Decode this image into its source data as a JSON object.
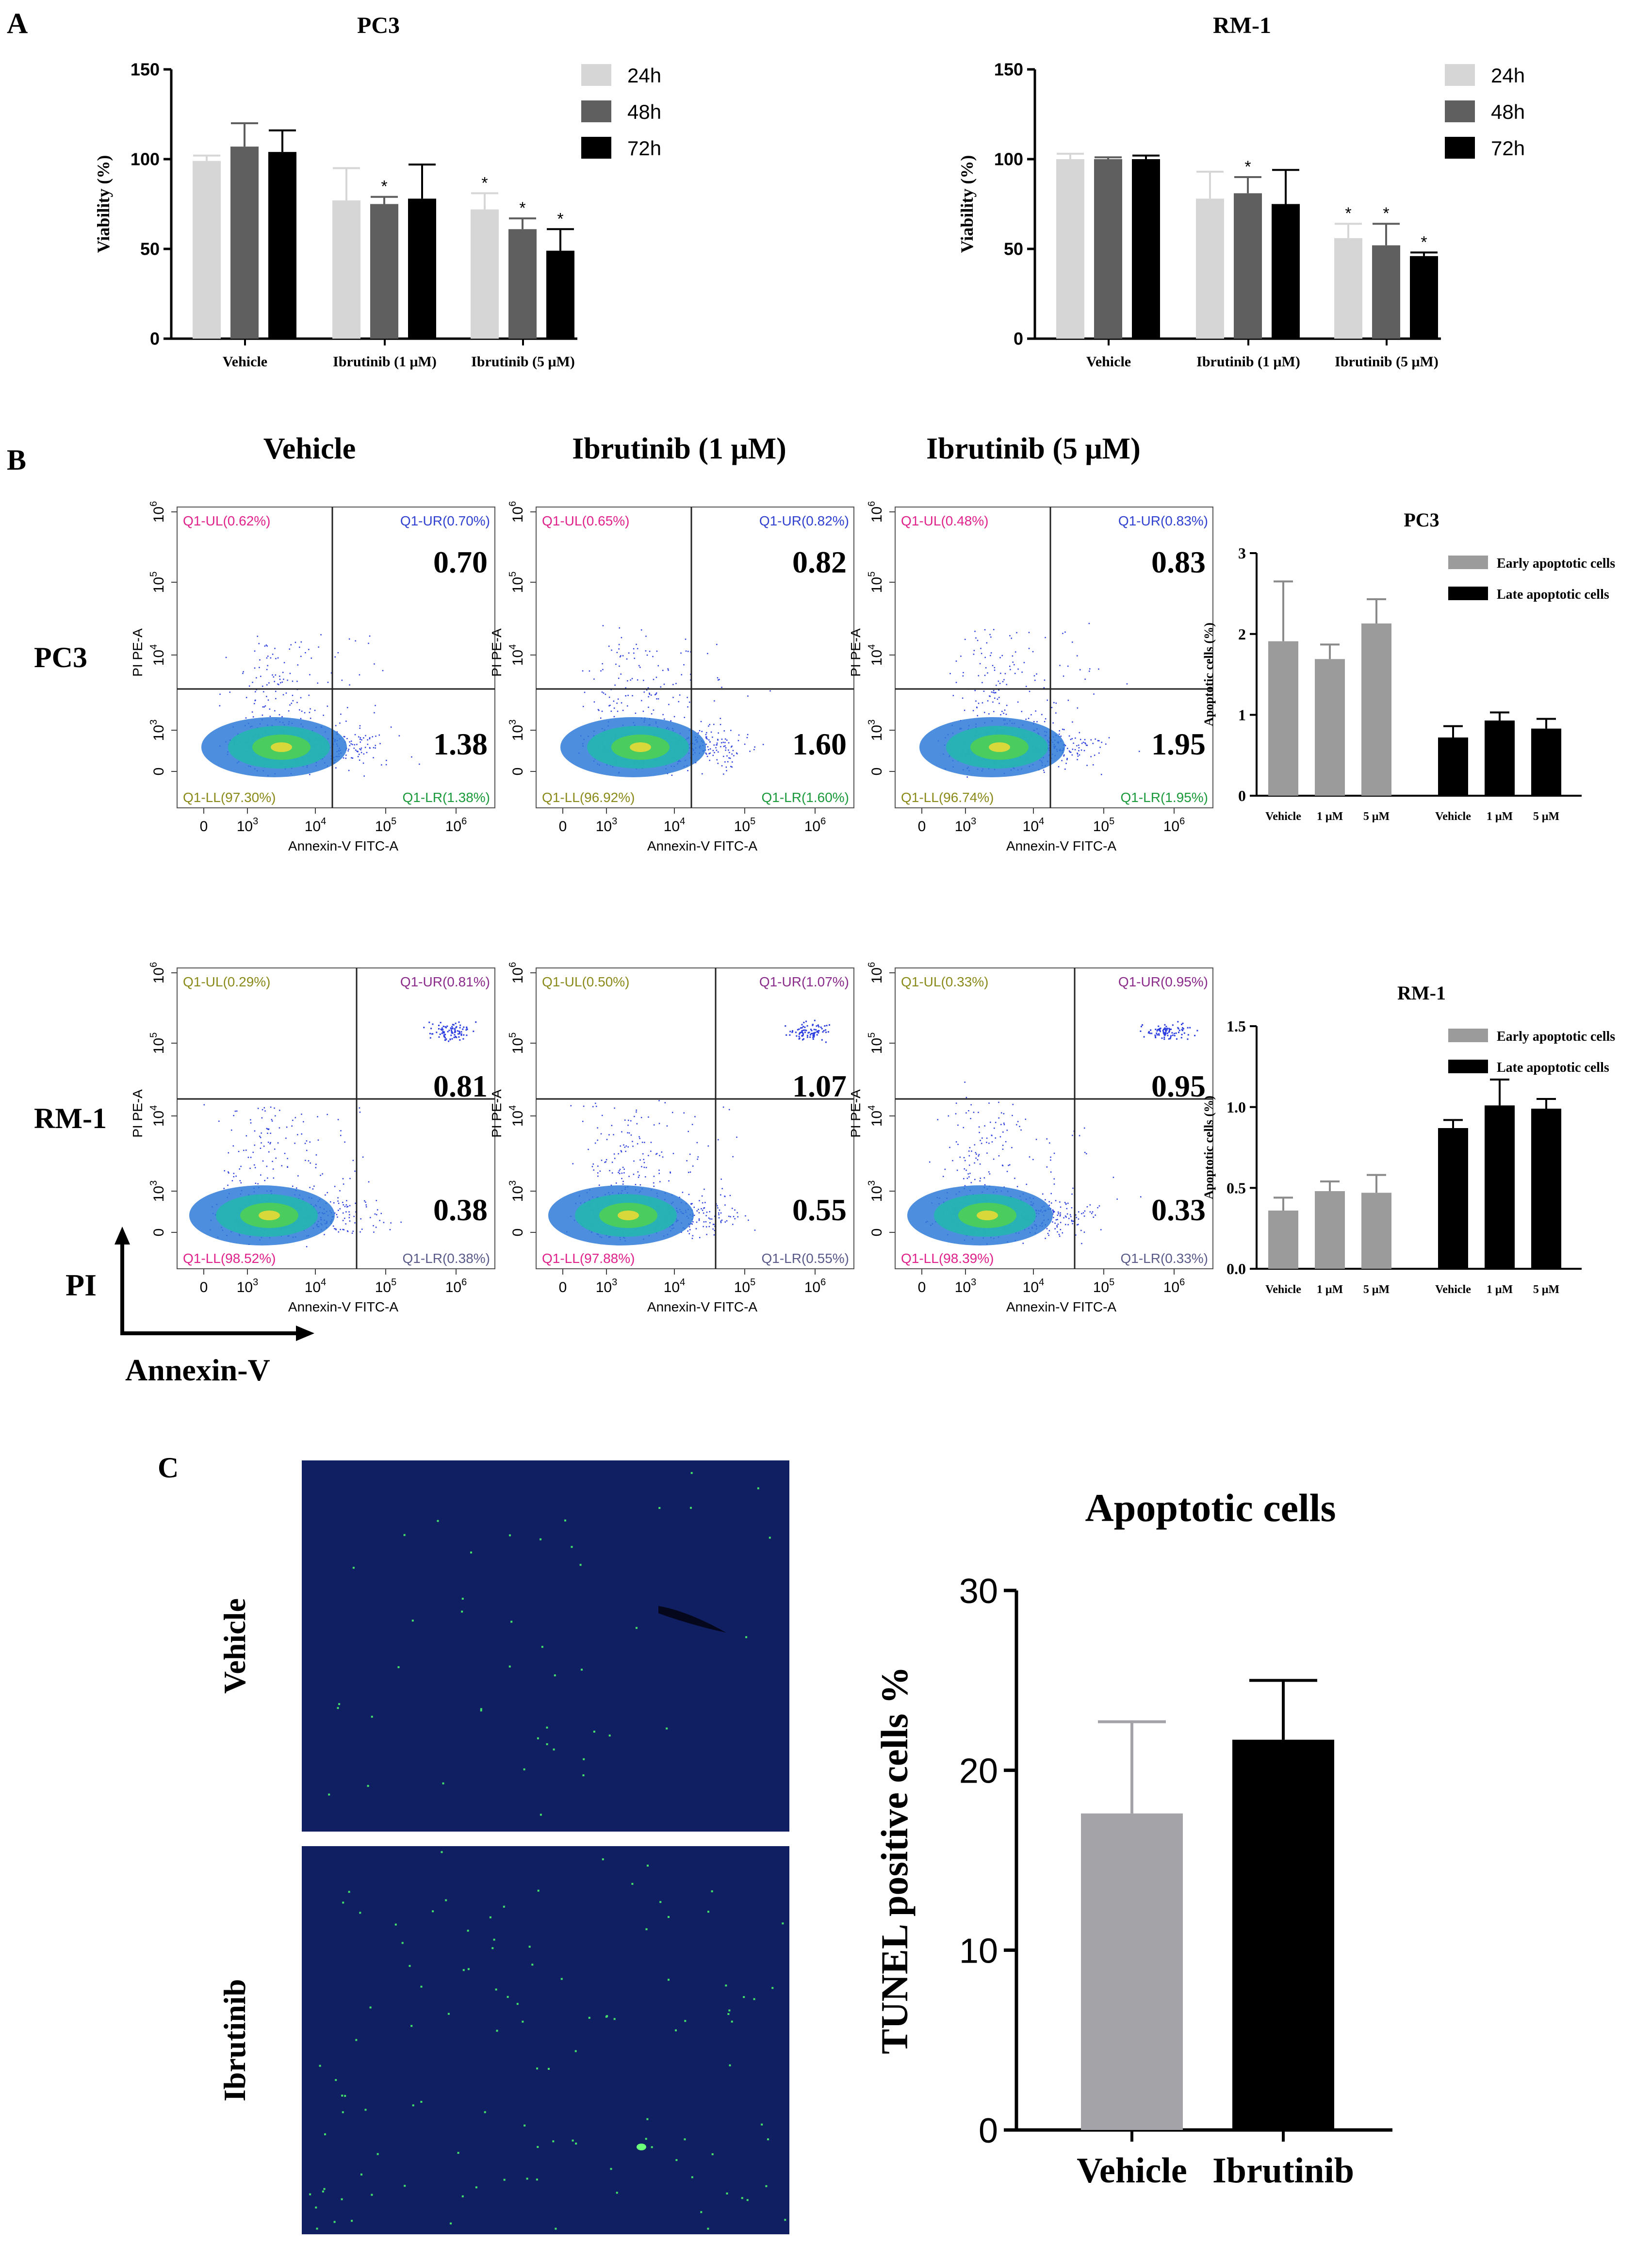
{
  "panel_labels": [
    "A",
    "B",
    "C"
  ],
  "colors": {
    "bar_24h": "#d6d6d6",
    "bar_48h": "#5f5f5f",
    "bar_72h": "#000000",
    "early": "#9b9b9b",
    "late": "#000000",
    "vehicle_tunel": "#a3a3a8",
    "ibrutinib_tunel": "#000000",
    "magenta": "#e0218a",
    "blue": "#3040d0",
    "green": "#1a9a3a",
    "olive": "#8a8a1a",
    "purple": "#8a2a8a",
    "slate": "#5a5a8a",
    "flow_bg": "#ffffff",
    "tissue_bg": "#0f1f62"
  },
  "chart_data": [
    {
      "id": "pc3-viability",
      "type": "bar",
      "title": "PC3",
      "ylabel": "Viability (%)",
      "ylim": [
        0,
        150
      ],
      "yticks": [
        0,
        50,
        100,
        150
      ],
      "categories": [
        "Vehicle",
        "Ibrutinib (1 μM)",
        "Ibrutinib (5 μM)"
      ],
      "series": [
        {
          "name": "24h",
          "values": [
            99,
            77,
            72
          ],
          "errors": [
            3,
            18,
            9
          ],
          "sig": [
            "",
            "",
            "*"
          ]
        },
        {
          "name": "48h",
          "values": [
            107,
            75,
            61
          ],
          "errors": [
            13,
            4,
            6
          ],
          "sig": [
            "",
            "*",
            "*"
          ]
        },
        {
          "name": "72h",
          "values": [
            104,
            78,
            49
          ],
          "errors": [
            12,
            19,
            12
          ],
          "sig": [
            "",
            "",
            "*"
          ]
        }
      ],
      "legend": "top-right"
    },
    {
      "id": "rm1-viability",
      "type": "bar",
      "title": "RM-1",
      "ylabel": "Viability (%)",
      "ylim": [
        0,
        150
      ],
      "yticks": [
        0,
        50,
        100,
        150
      ],
      "categories": [
        "Vehicle",
        "Ibrutinib (1 μM)",
        "Ibrutinib (5 μM)"
      ],
      "series": [
        {
          "name": "24h",
          "values": [
            100,
            78,
            56
          ],
          "errors": [
            3,
            15,
            8
          ],
          "sig": [
            "",
            "",
            "*"
          ]
        },
        {
          "name": "48h",
          "values": [
            100,
            81,
            52
          ],
          "errors": [
            1,
            9,
            12
          ],
          "sig": [
            "",
            "*",
            "*"
          ]
        },
        {
          "name": "72h",
          "values": [
            100,
            75,
            46
          ],
          "errors": [
            2,
            19,
            2
          ],
          "sig": [
            "",
            "",
            "*"
          ]
        }
      ],
      "legend": "top-right"
    },
    {
      "id": "pc3-apoptosis",
      "type": "bar",
      "title": "PC3",
      "ylabel": "Apoptotic cells (%)",
      "ylim": [
        0,
        3
      ],
      "yticks": [
        "0",
        "1",
        "2",
        "3"
      ],
      "categories": [
        "Vehicle",
        "1 μM",
        "5 μM"
      ],
      "series": [
        {
          "name": "Early apoptotic cells",
          "values": [
            1.91,
            1.69,
            2.13
          ],
          "errors": [
            0.74,
            0.18,
            0.3
          ]
        },
        {
          "name": "Late apoptotic cells",
          "values": [
            0.72,
            0.93,
            0.83
          ],
          "errors": [
            0.14,
            0.1,
            0.12
          ]
        }
      ],
      "legend": "top-right"
    },
    {
      "id": "rm1-apoptosis",
      "type": "bar",
      "title": "RM-1",
      "ylabel": "Apoptotic cells (%)",
      "ylim": [
        0,
        1.5
      ],
      "yticks": [
        "0.0",
        "0.5",
        "1.0",
        "1.5"
      ],
      "categories": [
        "Vehicle",
        "1 μM",
        "5 μM"
      ],
      "series": [
        {
          "name": "Early apoptotic cells",
          "values": [
            0.36,
            0.48,
            0.47
          ],
          "errors": [
            0.08,
            0.06,
            0.11
          ]
        },
        {
          "name": "Late apoptotic cells",
          "values": [
            0.87,
            1.01,
            0.99
          ],
          "errors": [
            0.05,
            0.16,
            0.06
          ]
        }
      ],
      "legend": "top-right"
    },
    {
      "id": "tunel",
      "type": "bar",
      "title": "Apoptotic cells",
      "ylabel": "TUNEL positive cells %",
      "ylim": [
        0,
        30
      ],
      "yticks": [
        0,
        10,
        20,
        30
      ],
      "categories": [
        "Vehicle",
        "Ibrutinib"
      ],
      "values": [
        17.6,
        21.7
      ],
      "errors": [
        5.1,
        3.3
      ]
    },
    {
      "id": "flow-cytometry",
      "type": "scatter",
      "xlabel": "Annexin-V FITC-A",
      "ylabel": "PI PE-A",
      "column_titles": [
        "Vehicle",
        "Ibrutinib (1 μM)",
        "Ibrutinib (5 μM)"
      ],
      "row_labels": [
        "PC3",
        "RM-1"
      ],
      "x_ticks": [
        "0",
        "10",
        "10",
        "10",
        "10"
      ],
      "x_tick_exps": [
        "",
        "3",
        "4",
        "5",
        "6"
      ],
      "y_ticks": [
        "0",
        "10",
        "10",
        "10",
        "10"
      ],
      "y_tick_exps": [
        "",
        "3",
        "4",
        "5",
        "6"
      ],
      "plots": [
        {
          "row": 0,
          "col": 0,
          "UL": "Q1-UL(0.62%)",
          "UR": "Q1-UR(0.70%)",
          "LL": "Q1-LL(97.30%)",
          "LR": "Q1-LR(1.38%)",
          "big_ur": "0.70",
          "big_lr": "1.38"
        },
        {
          "row": 0,
          "col": 1,
          "UL": "Q1-UL(0.65%)",
          "UR": "Q1-UR(0.82%)",
          "LL": "Q1-LL(96.92%)",
          "LR": "Q1-LR(1.60%)",
          "big_ur": "0.82",
          "big_lr": "1.60"
        },
        {
          "row": 0,
          "col": 2,
          "UL": "Q1-UL(0.48%)",
          "UR": "Q1-UR(0.83%)",
          "LL": "Q1-LL(96.74%)",
          "LR": "Q1-LR(1.95%)",
          "big_ur": "0.83",
          "big_lr": "1.95"
        },
        {
          "row": 1,
          "col": 0,
          "UL": "Q1-UL(0.29%)",
          "UR": "Q1-UR(0.81%)",
          "LL": "Q1-LL(98.52%)",
          "LR": "Q1-LR(0.38%)",
          "big_ur": "0.81",
          "big_lr": "0.38"
        },
        {
          "row": 1,
          "col": 1,
          "UL": "Q1-UL(0.50%)",
          "UR": "Q1-UR(1.07%)",
          "LL": "Q1-LL(97.88%)",
          "LR": "Q1-LR(0.55%)",
          "big_ur": "1.07",
          "big_lr": "0.55"
        },
        {
          "row": 1,
          "col": 2,
          "UL": "Q1-UL(0.33%)",
          "UR": "Q1-UR(0.95%)",
          "LL": "Q1-LL(98.39%)",
          "LR": "Q1-LR(0.33%)",
          "big_ur": "0.95",
          "big_lr": "0.33"
        }
      ]
    }
  ],
  "axis_arrows": {
    "y": "PI",
    "x": "Annexin-V"
  },
  "tissue_images": [
    "Vehicle",
    "Ibrutinib"
  ]
}
